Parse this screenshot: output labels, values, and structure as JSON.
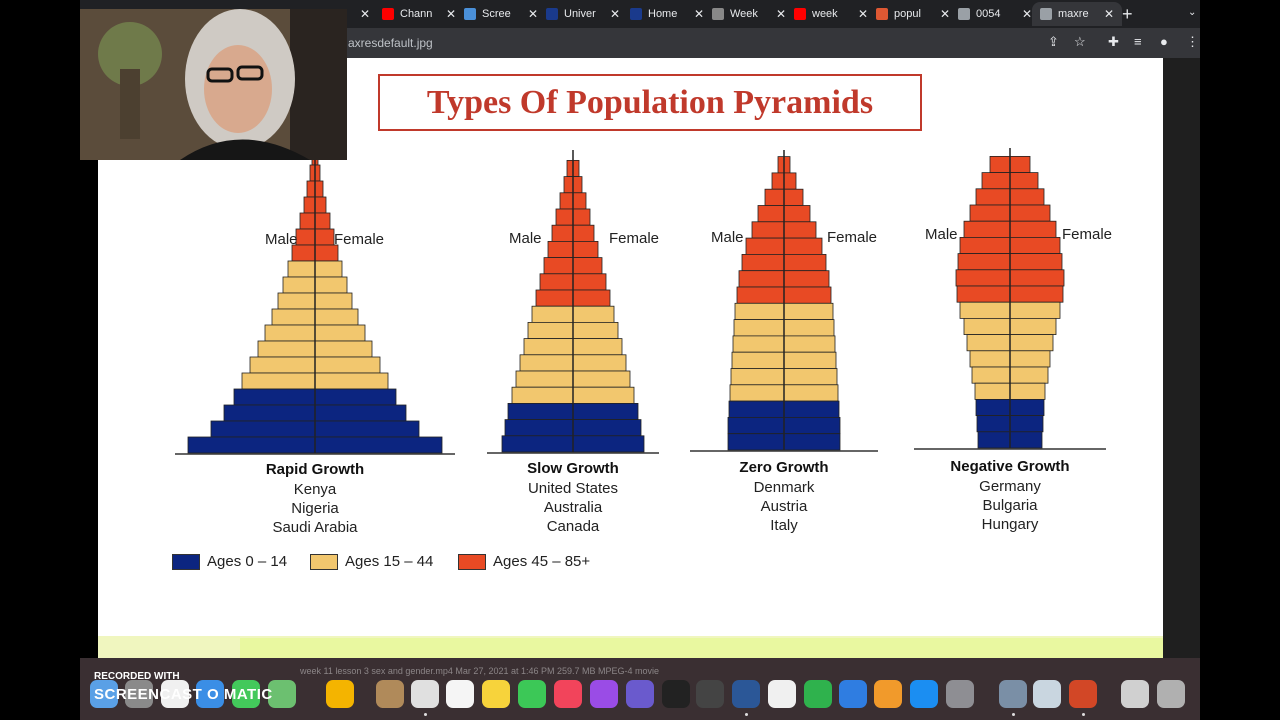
{
  "browser": {
    "tabs": [
      {
        "title": "",
        "icon": "tab-favicon-icon",
        "color": "#555555",
        "closable": true
      },
      {
        "title": "Chann",
        "icon": "youtube-icon",
        "color": "#ff0000",
        "closable": true
      },
      {
        "title": "Scree",
        "icon": "screencast-icon",
        "color": "#4a90d9",
        "closable": true
      },
      {
        "title": "Univer",
        "icon": "university-icon",
        "color": "#1a3a8c",
        "closable": true
      },
      {
        "title": "Home",
        "icon": "home-site-icon",
        "color": "#1a3a8c",
        "closable": true
      },
      {
        "title": "Week",
        "icon": "doc-icon",
        "color": "#888888",
        "closable": true
      },
      {
        "title": "week",
        "icon": "youtube-icon",
        "color": "#ff0000",
        "closable": true
      },
      {
        "title": "popul",
        "icon": "duckduckgo-icon",
        "color": "#de5833",
        "closable": true
      },
      {
        "title": "0054",
        "icon": "globe-icon",
        "color": "#9aa0a6",
        "closable": true
      },
      {
        "title": "maxre",
        "icon": "globe-icon",
        "color": "#9aa0a6",
        "closable": true,
        "active": true
      }
    ],
    "address": "axresdefault.jpg"
  },
  "slide": {
    "title": "Types Of Population Pyramids",
    "pyramids": [
      {
        "name": "Rapid Growth",
        "male": "Male",
        "female": "Female",
        "countries": [
          "Kenya",
          "Nigeria",
          "Saudi Arabia"
        ]
      },
      {
        "name": "Slow Growth",
        "male": "Male",
        "female": "Female",
        "countries": [
          "United States",
          "Australia",
          "Canada"
        ]
      },
      {
        "name": "Zero Growth",
        "male": "Male",
        "female": "Female",
        "countries": [
          "Denmark",
          "Austria",
          "Italy"
        ]
      },
      {
        "name": "Negative Growth",
        "male": "Male",
        "female": "Female",
        "countries": [
          "Germany",
          "Bulgaria",
          "Hungary"
        ]
      }
    ],
    "legend": [
      {
        "label": "Ages 0 – 14",
        "color": "#0c2580"
      },
      {
        "label": "Ages 15 – 44",
        "color": "#f2c76e"
      },
      {
        "label": "Ages 45 – 85+",
        "color": "#e84a24"
      }
    ]
  },
  "dock": {
    "finder_info": "week 11 lesson 3 sex and gender.mp4          Mar 27, 2021 at 1:46 PM          259.7 MB    MPEG-4 movie",
    "watermark_top": "RECORDED WITH",
    "watermark_main": "SCREENCAST O MATIC"
  },
  "colors": {
    "title_red": "#c0392b",
    "young": "#0c2580",
    "middle": "#f2c76e",
    "old": "#e84a24"
  }
}
